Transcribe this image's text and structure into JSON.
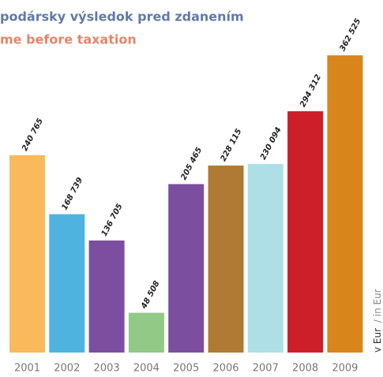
{
  "chart_data": {
    "type": "bar",
    "title": "podársky výsledok pred zdanením",
    "subtitle": "me before taxation",
    "y_label": "v Eur",
    "y_label_secondary": "/ in Eur",
    "categories": [
      "2001",
      "2002",
      "2003",
      "2004",
      "2005",
      "2006",
      "2007",
      "2008",
      "2009"
    ],
    "values": [
      240765,
      168739,
      136705,
      48508,
      205465,
      228115,
      230094,
      294312,
      362525
    ],
    "value_labels": [
      "240 765",
      "168 739",
      "136 705",
      "48 508",
      "205 465",
      "228 115",
      "230 094",
      "294 312",
      "362 525"
    ],
    "colors": [
      "#f9b95c",
      "#4fb3e0",
      "#7b4ea0",
      "#93c987",
      "#7b4ea0",
      "#b07a35",
      "#aedfe6",
      "#cc1f2a",
      "#d8861b"
    ],
    "ylim": [
      0,
      380000
    ]
  }
}
